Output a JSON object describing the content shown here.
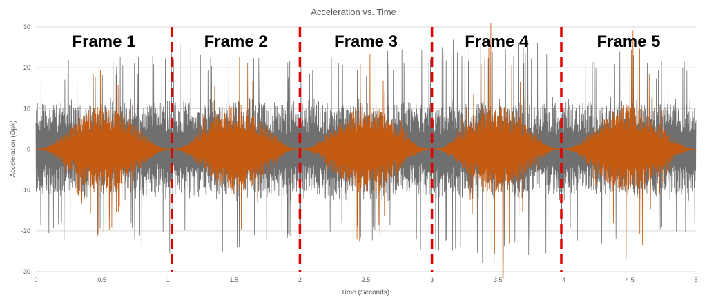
{
  "chart_data": {
    "type": "line",
    "title": "Acceleration vs. Time",
    "xlabel": "Time (Seconds)",
    "ylabel": "Acceleration (Gpk)",
    "xlim": [
      0,
      5
    ],
    "ylim": [
      -30,
      30
    ],
    "xticks": [
      "0",
      "0.5",
      "1",
      "1.5",
      "2",
      "2.5",
      "3",
      "3.5",
      "4",
      "4.5",
      "5"
    ],
    "yticks": [
      "30",
      "20",
      "10",
      "0",
      "-10",
      "-20",
      "-30"
    ],
    "grid": "horizontal",
    "series": [
      {
        "color": "#6f6f6f",
        "description": "random vibration signal spanning full duration",
        "amplitude_envelope": {
          "x": [
            0,
            0.5,
            1,
            1.5,
            2,
            2.5,
            3,
            3.5,
            4,
            4.5,
            5
          ],
          "peak": [
            23,
            22,
            26,
            25,
            22,
            24,
            26,
            29,
            25,
            24,
            21
          ]
        }
      },
      {
        "color": "#c55a11",
        "description": "windowed signal per frame",
        "amplitude_envelope": {
          "x": [
            0,
            0.5,
            1,
            1.5,
            2,
            2.5,
            3,
            3.5,
            4,
            4.5,
            5
          ],
          "peak": [
            0,
            19,
            0,
            22,
            0,
            23,
            0,
            29,
            0,
            25,
            0
          ]
        }
      }
    ],
    "frames": [
      {
        "label": "Frame 1",
        "start": 0.0,
        "end": 1.03
      },
      {
        "label": "Frame 2",
        "start": 1.03,
        "end": 2.0
      },
      {
        "label": "Frame 3",
        "start": 2.0,
        "end": 3.0
      },
      {
        "label": "Frame 4",
        "start": 3.0,
        "end": 3.98
      },
      {
        "label": "Frame 5",
        "start": 3.98,
        "end": 5.0
      }
    ],
    "frame_boundaries": [
      1.03,
      2.0,
      3.0,
      3.98
    ],
    "boundary_color": "#e00000"
  }
}
